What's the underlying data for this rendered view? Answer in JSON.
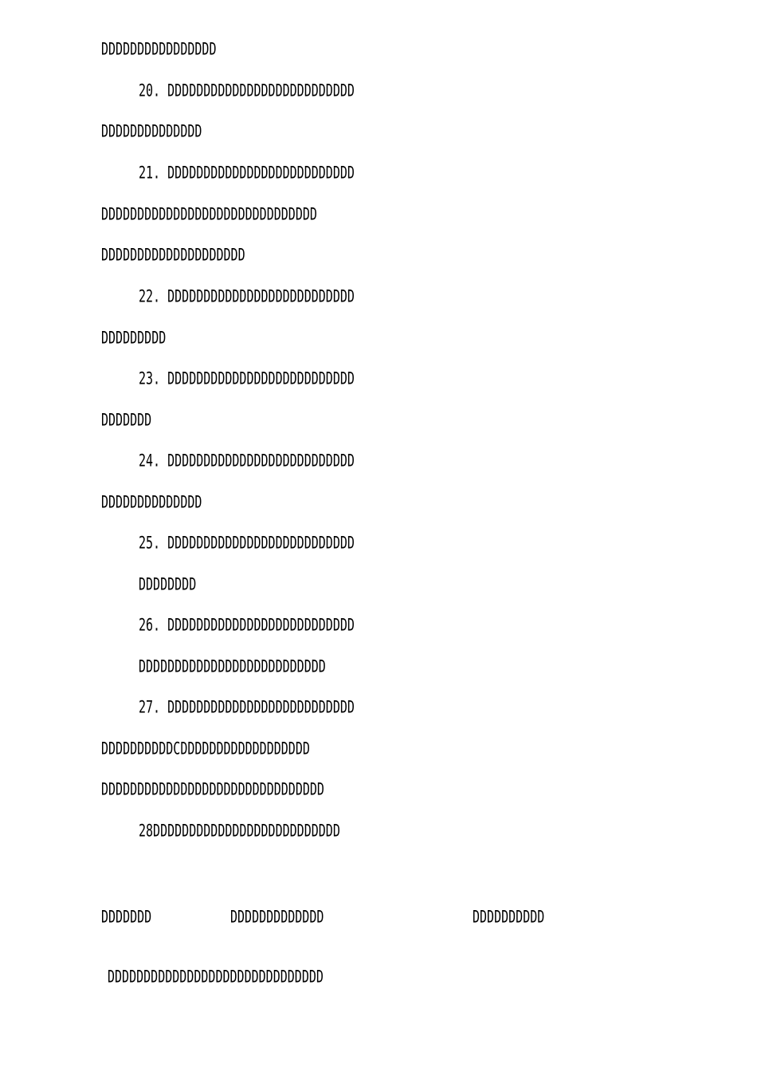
{
  "lines": [
    "DDDDDDDDDDDDDDDD",
    "20. DDDDDDDDDDDDDDDDDDDDDDDDDD",
    "DDDDDDDDDDDDDD",
    "21. DDDDDDDDDDDDDDDDDDDDDDDDDD",
    "DDDDDDDDDDDDDDDDDDDDDDDDDDDDDD",
    "DDDDDDDDDDDDDDDDDDDD",
    "22. DDDDDDDDDDDDDDDDDDDDDDDDDD",
    "DDDDDDDDD",
    "23. DDDDDDDDDDDDDDDDDDDDDDDDDD",
    "DDDDDDD",
    "24. DDDDDDDDDDDDDDDDDDDDDDDDDD",
    "DDDDDDDDDDDDDD",
    "25. DDDDDDDDDDDDDDDDDDDDDDDDDD",
    "DDDDDDDD",
    "26. DDDDDDDDDDDDDDDDDDDDDDDDDD",
    "DDDDDDDDDDDDDDDDDDDDDDDDDD",
    "27. DDDDDDDDDDDDDDDDDDDDDDDDDD",
    "DDDDDDDDDDCDDDDDDDDDDDDDDDDDD",
    "DDDDDDDDDDDDDDDDDDDDDDDDDDDDDDD",
    "28DDDDDDDDDDDDDDDDDDDDDDDDDD"
  ],
  "footer": {
    "col1": "DDDDDDD",
    "col2": "DDDDDDDDDDDDD",
    "col3": "DDDDDDDDDD",
    "note": "DDDDDDDDDDDDDDDDDDDDDDDDDDDDDD"
  }
}
